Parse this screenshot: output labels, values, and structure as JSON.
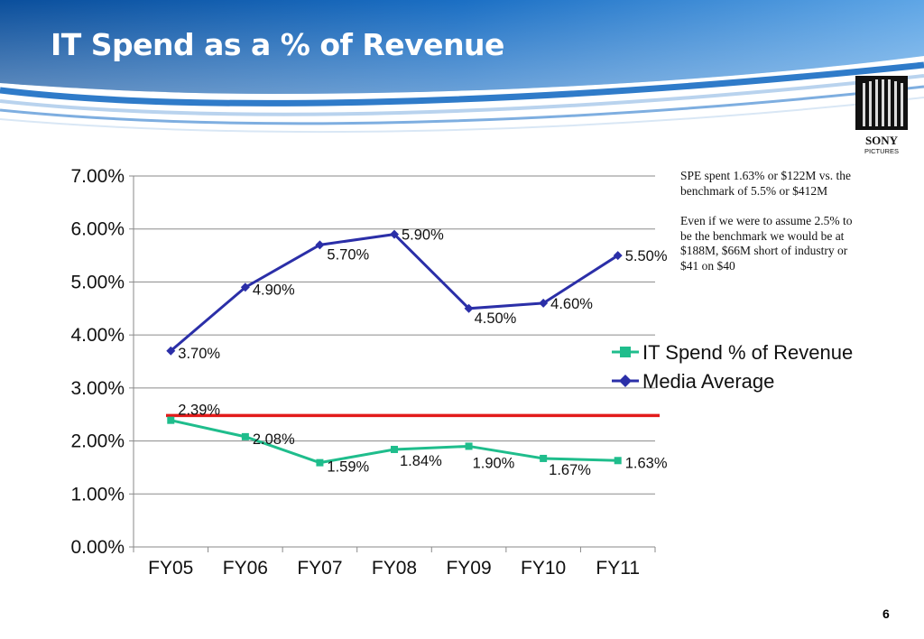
{
  "slide": {
    "title": "IT Spend as a % of Revenue",
    "page_number": "6",
    "logo": {
      "text_main": "SONY",
      "text_sub": "PICTURES"
    },
    "notes": [
      "SPE spent 1.63% or $122M vs. the benchmark of 5.5% or $412M",
      "Even if we were to assume 2.5% to be the benchmark we would be at $188M, $66M short of industry or $41 on $40"
    ]
  },
  "chart_data": {
    "type": "line",
    "categories": [
      "FY05",
      "FY06",
      "FY07",
      "FY08",
      "FY09",
      "FY10",
      "FY11"
    ],
    "ylim": [
      0,
      0.07
    ],
    "yticks": [
      "0.00%",
      "1.00%",
      "2.00%",
      "3.00%",
      "4.00%",
      "5.00%",
      "6.00%",
      "7.00%"
    ],
    "grid": true,
    "legend_position": "right",
    "series": [
      {
        "name": "IT Spend % of Revenue",
        "color": "#1fbd8c",
        "marker": "square",
        "values": [
          0.0239,
          0.0208,
          0.0159,
          0.0184,
          0.019,
          0.0167,
          0.0163
        ],
        "labels": [
          "2.39%",
          "2.08%",
          "1.59%",
          "1.84%",
          "1.90%",
          "1.67%",
          "1.63%"
        ]
      },
      {
        "name": "Media Average",
        "color": "#2b2fa8",
        "marker": "diamond",
        "values": [
          0.037,
          0.049,
          0.057,
          0.059,
          0.045,
          0.046,
          0.055
        ],
        "labels": [
          "3.70%",
          "4.90%",
          "5.70%",
          "5.90%",
          "4.50%",
          "4.60%",
          "5.50%"
        ]
      }
    ],
    "reference_line": {
      "value": 0.0248,
      "color": "#e31b1b"
    }
  }
}
